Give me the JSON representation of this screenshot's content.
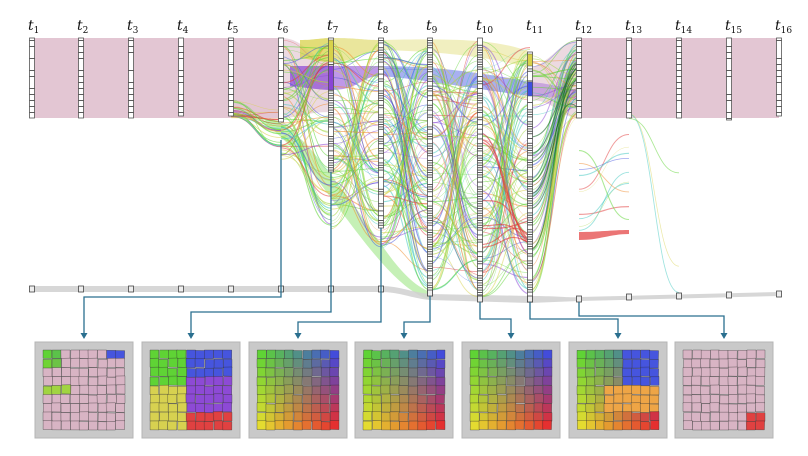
{
  "timeline": {
    "steps": [
      {
        "label": "t",
        "sub": "1"
      },
      {
        "label": "t",
        "sub": "2"
      },
      {
        "label": "t",
        "sub": "3"
      },
      {
        "label": "t",
        "sub": "4"
      },
      {
        "label": "t",
        "sub": "5"
      },
      {
        "label": "t",
        "sub": "6"
      },
      {
        "label": "t",
        "sub": "7"
      },
      {
        "label": "t",
        "sub": "8"
      },
      {
        "label": "t",
        "sub": "9"
      },
      {
        "label": "t",
        "sub": "10"
      },
      {
        "label": "t",
        "sub": "11"
      },
      {
        "label": "t",
        "sub": "12"
      },
      {
        "label": "t",
        "sub": "13"
      },
      {
        "label": "t",
        "sub": "14"
      },
      {
        "label": "t",
        "sub": "15"
      },
      {
        "label": "t",
        "sub": "16"
      }
    ]
  },
  "snapshots": {
    "linked_steps": [
      "6",
      "7",
      "8",
      "9",
      "10",
      "11",
      "12"
    ],
    "styles": [
      "pink-dominant",
      "four-cluster",
      "gradient",
      "gradient",
      "gradient",
      "gradient-clusters",
      "pink-red-corner"
    ]
  },
  "colors": {
    "pink_band": "#d9b3c4",
    "purple": "#8a44d6",
    "yellow": "#d8d24a",
    "blue": "#3f4fe0",
    "green": "#5ad42e",
    "red": "#e23a3a",
    "connector": "#2a6f8f",
    "gray_band": "#d0d0d0"
  }
}
